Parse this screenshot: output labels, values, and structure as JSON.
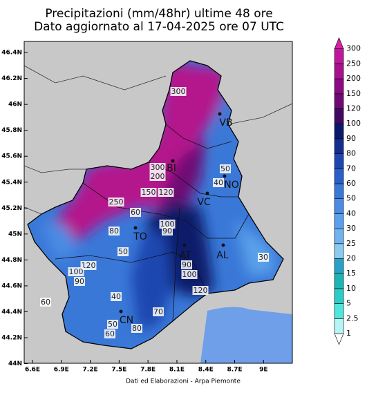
{
  "header": {
    "title": "Precipitazioni (mm/48hr) ultime 48 ore",
    "subtitle": "Dato aggiornato al 17-04-2025 ore 07 UTC"
  },
  "map": {
    "lat_ticks": [
      {
        "value": 44,
        "label": "44N"
      },
      {
        "value": 44.2,
        "label": "44.2N"
      },
      {
        "value": 44.4,
        "label": "44.4N"
      },
      {
        "value": 44.6,
        "label": "44.6N"
      },
      {
        "value": 44.8,
        "label": "44.8N"
      },
      {
        "value": 45,
        "label": "45N"
      },
      {
        "value": 45.2,
        "label": "45.2N"
      },
      {
        "value": 45.4,
        "label": "45.4N"
      },
      {
        "value": 45.6,
        "label": "45.6N"
      },
      {
        "value": 45.8,
        "label": "45.8N"
      },
      {
        "value": 46,
        "label": "46N"
      },
      {
        "value": 46.2,
        "label": "46.2N"
      },
      {
        "value": 46.4,
        "label": "46.4N"
      }
    ],
    "lon_ticks": [
      {
        "value": 6.6,
        "label": "6.6E"
      },
      {
        "value": 6.9,
        "label": "6.9E"
      },
      {
        "value": 7.2,
        "label": "7.2E"
      },
      {
        "value": 7.5,
        "label": "7.5E"
      },
      {
        "value": 7.8,
        "label": "7.8E"
      },
      {
        "value": 8.1,
        "label": "8.1E"
      },
      {
        "value": 8.4,
        "label": "8.4E"
      },
      {
        "value": 8.7,
        "label": "8.7E"
      },
      {
        "value": 9,
        "label": "9E"
      }
    ],
    "contour_labels": [
      300,
      300,
      200,
      150,
      120,
      250,
      60,
      80,
      100,
      90,
      50,
      120,
      100,
      90,
      60,
      40,
      50,
      60,
      80,
      70,
      90,
      100,
      120,
      30,
      50,
      40
    ],
    "province_labels": [
      "VB",
      "BI",
      "NO",
      "VC",
      "TO",
      "AT",
      "AL",
      "CN"
    ]
  },
  "colorbar": {
    "levels": [
      1,
      2.5,
      5,
      10,
      15,
      20,
      25,
      30,
      40,
      50,
      60,
      70,
      80,
      90,
      100,
      120,
      150,
      200,
      250,
      300
    ],
    "colors": [
      "#ffffff",
      "#b4f5f5",
      "#50e6dc",
      "#2ccdc8",
      "#1eb4b4",
      "#28a0c8",
      "#8ccaf0",
      "#6eb4ee",
      "#5aa0ea",
      "#4a8ce4",
      "#3a78d8",
      "#2a5ec8",
      "#1e46b0",
      "#142e90",
      "#0a1a6a",
      "#400a60",
      "#6e0a74",
      "#8c0a84",
      "#a8108e",
      "#c0189c",
      "#d820a8"
    ]
  },
  "footer": "Dati ed Elaborazioni - Arpa Piemonte"
}
